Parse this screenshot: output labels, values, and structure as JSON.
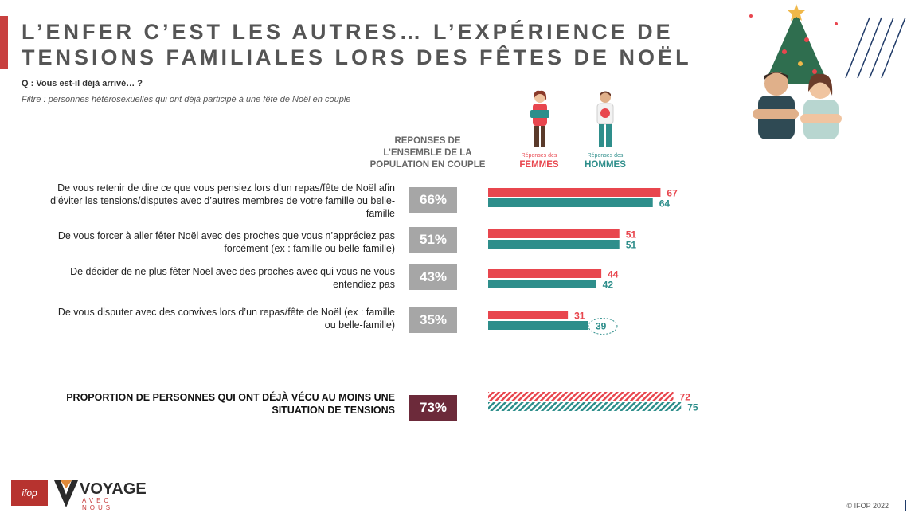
{
  "title": "L’ENFER C’EST LES AUTRES… L’EXPÉRIENCE DE TENSIONS FAMILIALES LORS DES FÊTES DE NOËL",
  "question": "Q : Vous est-il déjà arrivé… ?",
  "filter": "Filtre  : personnes hétérosexuelles qui ont déjà participé à une fête de Noël en couple",
  "columns": {
    "overall": "REPONSES DE L’ENSEMBLE DE LA POPULATION EN COUPLE",
    "women_small": "Réponses des",
    "women_big": "FEMMES",
    "men_small": "Réponses des",
    "men_big": "HOMMES"
  },
  "rows": [
    {
      "label": "De vous retenir de dire ce que vous pensiez lors d’un repas/fête de Noël afin d’éviter les tensions/disputes avec d’autres membres de votre famille ou belle-famille",
      "overall": "66%"
    },
    {
      "label": "De vous forcer à aller fêter Noël avec des proches que vous n’appréciez pas forcément (ex : famille ou belle-famille)",
      "overall": "51%"
    },
    {
      "label": "De décider de ne plus fêter Noël avec des proches avec qui vous ne vous entendiez pas",
      "overall": "43%"
    },
    {
      "label": "De vous disputer avec des convives lors d’un repas/fête de Noël (ex : famille ou belle-famille)",
      "overall": "35%"
    }
  ],
  "total": {
    "label": "PROPORTION DE PERSONNES QUI ONT DÉJÀ VÉCU AU MOINS UNE SITUATION DE TENSIONS",
    "overall": "73%"
  },
  "chart_data": {
    "type": "bar",
    "orientation": "horizontal",
    "categories": [
      "De vous retenir de dire ce que vous pensiez lors d’un repas/fête de Noël afin d’éviter les tensions/disputes avec d’autres membres de votre famille ou belle-famille",
      "De vous forcer à aller fêter Noël avec des proches que vous n’appréciez pas forcément (ex : famille ou belle-famille)",
      "De décider de ne plus fêter Noël avec des proches avec qui vous ne vous entendiez pas",
      "De vous disputer avec des convives lors d’un repas/fête de Noël (ex : famille ou belle-famille)",
      "PROPORTION DE PERSONNES QUI ONT DÉJÀ VÉCU AU MOINS UNE SITUATION DE TENSIONS"
    ],
    "series": [
      {
        "name": "FEMMES",
        "values": [
          67,
          51,
          44,
          31,
          72
        ],
        "color": "#e8464e"
      },
      {
        "name": "HOMMES",
        "values": [
          64,
          51,
          42,
          39,
          75
        ],
        "color": "#2e8e8b"
      }
    ],
    "overall_values": [
      66,
      51,
      43,
      35,
      73
    ],
    "xlim": [
      0,
      100
    ],
    "highlight": {
      "series": "HOMMES",
      "category_index": 3
    },
    "hatched_category_index": 4
  },
  "footer": {
    "logo_ifop": "ifop",
    "logo_voyage": "VOYAGE",
    "logo_voyage_sub": "AVEC NOUS",
    "copyright": "© IFOP 2022"
  }
}
